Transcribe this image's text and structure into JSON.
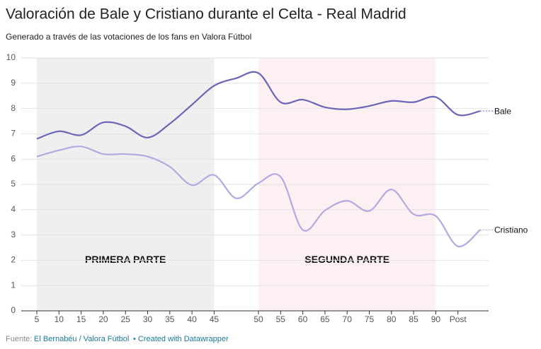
{
  "chart_data": {
    "type": "line",
    "title": "Valoración de Bale y Cristiano durante el Celta - Real Madrid",
    "subtitle": "Generado a través de las votaciones de los fans en Valora Fútbol",
    "categories": [
      "5",
      "10",
      "15",
      "20",
      "25",
      "30",
      "35",
      "40",
      "45",
      null,
      "50",
      "55",
      "60",
      "65",
      "70",
      "75",
      "80",
      "85",
      "90",
      "Post",
      null
    ],
    "series": [
      {
        "name": "Bale",
        "color": "#6b66b8",
        "values": [
          6.8,
          7.1,
          6.95,
          7.45,
          7.3,
          6.85,
          7.4,
          8.15,
          8.9,
          9.2,
          9.4,
          8.25,
          8.35,
          8.05,
          7.97,
          8.1,
          8.3,
          8.25,
          8.45,
          7.75,
          7.9
        ]
      },
      {
        "name": "Cristiano",
        "color": "#b3a9e2",
        "values": [
          6.1,
          6.35,
          6.5,
          6.2,
          6.2,
          6.1,
          5.7,
          4.97,
          5.37,
          4.45,
          5.05,
          5.3,
          3.2,
          3.97,
          4.35,
          3.95,
          4.8,
          3.82,
          3.75,
          2.55,
          3.2
        ]
      }
    ],
    "periods": [
      {
        "label": "PRIMERA PARTE",
        "start": "5",
        "end": "45",
        "color": "#efefef"
      },
      {
        "label": "SEGUNDA PARTE",
        "start": "50",
        "end": "90",
        "color": "#fcf0f2"
      }
    ],
    "ylim": [
      0,
      10
    ],
    "yticks": [
      0,
      1,
      2,
      3,
      4,
      5,
      6,
      7,
      8,
      9,
      10
    ],
    "grid": true,
    "source_label": "Fuente:",
    "source": "El Bernabéu / Valora Fútbol",
    "credit": "• Created with Datawrapper"
  }
}
